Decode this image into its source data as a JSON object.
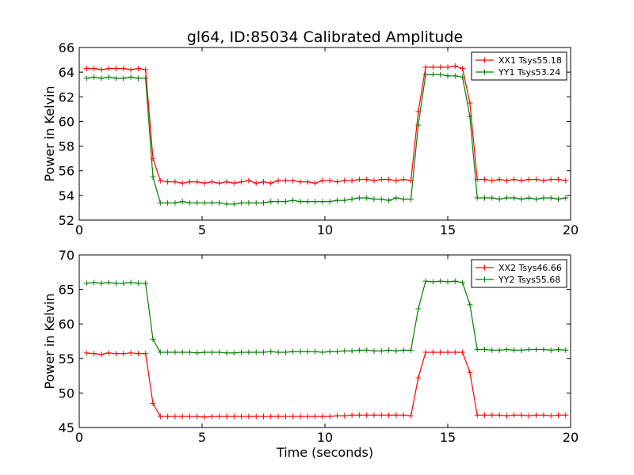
{
  "title": "gl64, ID:85034 Calibrated Amplitude",
  "chart_data": [
    {
      "type": "line",
      "xlabel": "",
      "ylabel": "Power in Kelvin",
      "xlim": [
        0,
        20
      ],
      "ylim": [
        52,
        66
      ],
      "xticks": [
        0,
        5,
        10,
        15,
        20
      ],
      "yticks": [
        52,
        54,
        56,
        58,
        60,
        62,
        64,
        66
      ],
      "grid": false,
      "legend_position": "top-right",
      "series": [
        {
          "name": "XX1 Tsys55.18",
          "color": "#ff0000",
          "x": [
            0.3,
            0.6,
            0.9,
            1.2,
            1.5,
            1.8,
            2.1,
            2.4,
            2.7,
            3.0,
            3.3,
            3.6,
            3.9,
            4.2,
            4.5,
            4.8,
            5.1,
            5.4,
            5.7,
            6.0,
            6.3,
            6.6,
            6.9,
            7.2,
            7.5,
            7.8,
            8.1,
            8.4,
            8.7,
            9.0,
            9.3,
            9.6,
            9.9,
            10.2,
            10.5,
            10.8,
            11.1,
            11.4,
            11.7,
            12.0,
            12.3,
            12.6,
            12.9,
            13.2,
            13.5,
            13.8,
            14.1,
            14.4,
            14.7,
            15.0,
            15.3,
            15.6,
            15.9,
            16.2,
            16.5,
            16.8,
            17.1,
            17.4,
            17.7,
            18.0,
            18.3,
            18.6,
            18.9,
            19.2,
            19.5,
            19.8
          ],
          "y": [
            64.3,
            64.3,
            64.2,
            64.3,
            64.3,
            64.3,
            64.2,
            64.3,
            64.2,
            57.0,
            55.2,
            55.1,
            55.1,
            55.0,
            55.1,
            55.1,
            55.0,
            55.1,
            55.0,
            55.1,
            55.0,
            55.1,
            55.2,
            55.0,
            55.1,
            55.0,
            55.2,
            55.2,
            55.2,
            55.1,
            55.1,
            55.0,
            55.2,
            55.2,
            55.1,
            55.2,
            55.2,
            55.3,
            55.3,
            55.2,
            55.3,
            55.3,
            55.2,
            55.3,
            55.2,
            60.8,
            64.4,
            64.4,
            64.4,
            64.4,
            64.5,
            64.3,
            61.5,
            55.3,
            55.3,
            55.2,
            55.3,
            55.2,
            55.3,
            55.2,
            55.3,
            55.3,
            55.2,
            55.3,
            55.3,
            55.2
          ]
        },
        {
          "name": "YY1 Tsys53.24",
          "color": "#008000",
          "x": [
            0.3,
            0.6,
            0.9,
            1.2,
            1.5,
            1.8,
            2.1,
            2.4,
            2.7,
            3.0,
            3.3,
            3.6,
            3.9,
            4.2,
            4.5,
            4.8,
            5.1,
            5.4,
            5.7,
            6.0,
            6.3,
            6.6,
            6.9,
            7.2,
            7.5,
            7.8,
            8.1,
            8.4,
            8.7,
            9.0,
            9.3,
            9.6,
            9.9,
            10.2,
            10.5,
            10.8,
            11.1,
            11.4,
            11.7,
            12.0,
            12.3,
            12.6,
            12.9,
            13.2,
            13.5,
            13.8,
            14.1,
            14.4,
            14.7,
            15.0,
            15.3,
            15.6,
            15.9,
            16.2,
            16.5,
            16.8,
            17.1,
            17.4,
            17.7,
            18.0,
            18.3,
            18.6,
            18.9,
            19.2,
            19.5,
            19.8
          ],
          "y": [
            63.5,
            63.6,
            63.5,
            63.6,
            63.5,
            63.5,
            63.6,
            63.5,
            63.5,
            55.5,
            53.4,
            53.4,
            53.4,
            53.5,
            53.4,
            53.4,
            53.4,
            53.4,
            53.4,
            53.3,
            53.3,
            53.4,
            53.4,
            53.4,
            53.4,
            53.5,
            53.5,
            53.5,
            53.6,
            53.5,
            53.5,
            53.5,
            53.5,
            53.5,
            53.6,
            53.6,
            53.7,
            53.8,
            53.8,
            53.7,
            53.7,
            53.6,
            53.8,
            53.7,
            53.7,
            59.7,
            63.8,
            63.8,
            63.8,
            63.7,
            63.7,
            63.6,
            60.4,
            53.8,
            53.8,
            53.8,
            53.7,
            53.8,
            53.8,
            53.7,
            53.8,
            53.7,
            53.8,
            53.8,
            53.7,
            53.8
          ]
        }
      ]
    },
    {
      "type": "line",
      "xlabel": "Time (seconds)",
      "ylabel": "Power in Kelvin",
      "xlim": [
        0,
        20
      ],
      "ylim": [
        45,
        70
      ],
      "xticks": [
        0,
        5,
        10,
        15,
        20
      ],
      "yticks": [
        45,
        50,
        55,
        60,
        65,
        70
      ],
      "grid": false,
      "legend_position": "top-right",
      "series": [
        {
          "name": "XX2 Tsys46.66",
          "color": "#ff0000",
          "x": [
            0.3,
            0.6,
            0.9,
            1.2,
            1.5,
            1.8,
            2.1,
            2.4,
            2.7,
            3.0,
            3.3,
            3.6,
            3.9,
            4.2,
            4.5,
            4.8,
            5.1,
            5.4,
            5.7,
            6.0,
            6.3,
            6.6,
            6.9,
            7.2,
            7.5,
            7.8,
            8.1,
            8.4,
            8.7,
            9.0,
            9.3,
            9.6,
            9.9,
            10.2,
            10.5,
            10.8,
            11.1,
            11.4,
            11.7,
            12.0,
            12.3,
            12.6,
            12.9,
            13.2,
            13.5,
            13.8,
            14.1,
            14.4,
            14.7,
            15.0,
            15.3,
            15.6,
            15.9,
            16.2,
            16.5,
            16.8,
            17.1,
            17.4,
            17.7,
            18.0,
            18.3,
            18.6,
            18.9,
            19.2,
            19.5,
            19.8
          ],
          "y": [
            55.8,
            55.7,
            55.6,
            55.8,
            55.7,
            55.7,
            55.8,
            55.7,
            55.7,
            48.5,
            46.6,
            46.6,
            46.6,
            46.6,
            46.6,
            46.6,
            46.5,
            46.6,
            46.6,
            46.6,
            46.6,
            46.6,
            46.6,
            46.6,
            46.6,
            46.6,
            46.6,
            46.6,
            46.6,
            46.6,
            46.6,
            46.6,
            46.6,
            46.6,
            46.7,
            46.7,
            46.8,
            46.8,
            46.8,
            46.8,
            46.8,
            46.8,
            46.8,
            46.8,
            46.7,
            52.2,
            55.9,
            55.9,
            55.9,
            55.9,
            55.9,
            55.9,
            53.0,
            46.8,
            46.8,
            46.8,
            46.8,
            46.7,
            46.8,
            46.8,
            46.7,
            46.8,
            46.8,
            46.7,
            46.8,
            46.8
          ]
        },
        {
          "name": "YY2 Tsys55.68",
          "color": "#008000",
          "x": [
            0.3,
            0.6,
            0.9,
            1.2,
            1.5,
            1.8,
            2.1,
            2.4,
            2.7,
            3.0,
            3.3,
            3.6,
            3.9,
            4.2,
            4.5,
            4.8,
            5.1,
            5.4,
            5.7,
            6.0,
            6.3,
            6.6,
            6.9,
            7.2,
            7.5,
            7.8,
            8.1,
            8.4,
            8.7,
            9.0,
            9.3,
            9.6,
            9.9,
            10.2,
            10.5,
            10.8,
            11.1,
            11.4,
            11.7,
            12.0,
            12.3,
            12.6,
            12.9,
            13.2,
            13.5,
            13.8,
            14.1,
            14.4,
            14.7,
            15.0,
            15.3,
            15.6,
            15.9,
            16.2,
            16.5,
            16.8,
            17.1,
            17.4,
            17.7,
            18.0,
            18.3,
            18.6,
            18.9,
            19.2,
            19.5,
            19.8
          ],
          "y": [
            65.9,
            66.0,
            65.9,
            66.0,
            65.9,
            65.9,
            66.0,
            65.9,
            65.9,
            57.8,
            55.9,
            55.9,
            55.9,
            55.9,
            55.9,
            55.8,
            55.9,
            55.9,
            55.9,
            55.8,
            55.8,
            55.9,
            55.9,
            55.9,
            55.9,
            56.0,
            55.9,
            55.9,
            56.0,
            56.0,
            56.0,
            56.0,
            55.9,
            56.0,
            56.0,
            56.1,
            56.1,
            56.2,
            56.2,
            56.1,
            56.1,
            56.2,
            56.1,
            56.2,
            56.2,
            62.2,
            66.2,
            66.1,
            66.2,
            66.1,
            66.2,
            66.0,
            62.8,
            56.3,
            56.3,
            56.2,
            56.2,
            56.3,
            56.2,
            56.2,
            56.3,
            56.3,
            56.3,
            56.2,
            56.3,
            56.2
          ]
        }
      ]
    }
  ]
}
